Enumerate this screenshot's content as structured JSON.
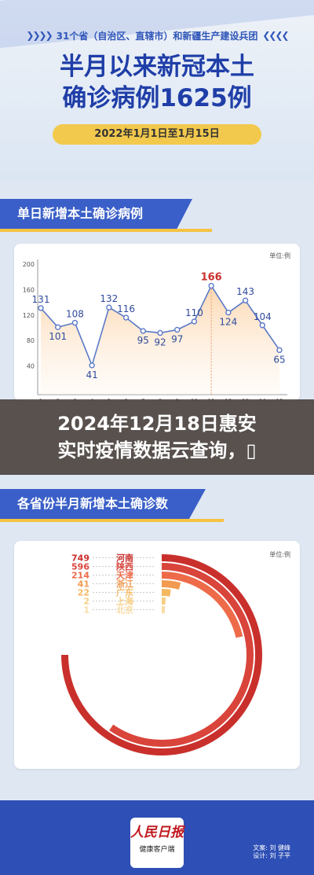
{
  "header": {
    "banner": "31个省（自治区、直辖市）和新疆生产建设兵团",
    "title_line1": "半月以来新冠本土",
    "title_line2": "确诊病例1625例",
    "date_range": "2022年1月1日至1月15日"
  },
  "section1": {
    "title": "单日新增本土确诊病例"
  },
  "section2": {
    "title": "各省份半月新增本土确诊数"
  },
  "overlay": {
    "line1": "2024年12月18日惠安",
    "line2": "实时疫情数据云查询，▯"
  },
  "footer": {
    "logo_text": "人民日报",
    "logo_sub": "健康客户端",
    "credit_line1": "文案: 刘 健峰",
    "credit_line2": "设计: 刘 子平"
  },
  "colors": {
    "brand_blue": "#3a5fc8",
    "accent_yellow": "#f5c342",
    "line_blue": "#5b79c9",
    "fill_orange": "#fbd9b5"
  },
  "chart_data": [
    {
      "type": "line",
      "unit_label": "单位:例",
      "x": [
        1,
        2,
        3,
        4,
        5,
        6,
        7,
        8,
        9,
        10,
        11,
        12,
        13,
        14,
        15
      ],
      "values": [
        131,
        101,
        108,
        41,
        132,
        116,
        95,
        92,
        97,
        110,
        166,
        124,
        143,
        104,
        65
      ],
      "ylim": [
        0,
        200
      ],
      "yticks": [
        0,
        40,
        80,
        120,
        160,
        200
      ],
      "peak_index": 10,
      "grid": false
    },
    {
      "type": "bar",
      "style": "radial",
      "unit_label": "单位:例",
      "categories": [
        "河南",
        "陕西",
        "天津",
        "浙江",
        "广东",
        "上海",
        "北京"
      ],
      "values": [
        749,
        596,
        214,
        41,
        22,
        2,
        1
      ],
      "colors": [
        "#c9302c",
        "#d9443b",
        "#ee6b4a",
        "#f29a4f",
        "#f5b860",
        "#f7cd82",
        "#f8dca5"
      ]
    }
  ]
}
